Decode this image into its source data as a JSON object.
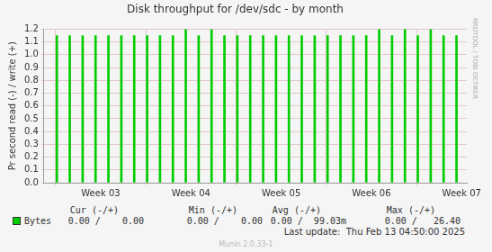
{
  "chart_data": {
    "type": "bar",
    "title": "Disk throughput for /dev/sdc - by month",
    "ylabel": "Pr second read (-) / write (+)",
    "x": [
      1,
      2,
      3,
      4,
      5,
      6,
      7,
      8,
      9,
      10,
      11,
      12,
      13,
      14,
      15,
      16,
      17,
      18,
      19,
      20,
      21,
      22,
      23,
      24,
      25,
      26,
      27,
      28,
      29,
      30,
      31,
      32
    ],
    "series": [
      {
        "name": "Bytes",
        "color": "#00cc00",
        "values": [
          1.15,
          1.15,
          1.15,
          1.15,
          1.15,
          1.15,
          1.15,
          1.15,
          1.15,
          1.15,
          1.2,
          1.15,
          1.2,
          1.15,
          1.15,
          1.15,
          1.15,
          1.15,
          1.15,
          1.15,
          1.15,
          1.15,
          1.15,
          1.15,
          1.15,
          1.2,
          1.15,
          1.2,
          1.15,
          1.2,
          1.15,
          1.15
        ]
      }
    ],
    "xlim": [
      0,
      32.8
    ],
    "xticks": [
      {
        "value": 4.4,
        "label": "Week 03"
      },
      {
        "value": 11.4,
        "label": "Week 04"
      },
      {
        "value": 18.4,
        "label": "Week 05"
      },
      {
        "value": 25.4,
        "label": "Week 06"
      },
      {
        "value": 32.4,
        "label": "Week 07"
      }
    ],
    "ylim": [
      0,
      1.2
    ],
    "yticks": [
      {
        "value": 0,
        "label": "0.0"
      },
      0.1,
      0.2,
      0.3,
      0.4,
      0.5,
      0.6,
      0.7,
      0.8,
      0.9,
      {
        "value": 1,
        "label": "1.0"
      },
      1.1,
      1.2
    ],
    "grid": true
  },
  "legend_table": {
    "headers": [
      "Cur (-/+)",
      "Min (-/+)",
      "Avg (-/+)",
      "Max (-/+)"
    ],
    "rows": [
      {
        "name": "Bytes",
        "cells": [
          "0.00 /    0.00",
          "0.00 /    0.00",
          "0.00 /  99.03m",
          "0.00 /   26.40"
        ]
      }
    ]
  },
  "last_update": "Last update:  Thu Feb 13 04:50:00 2025",
  "version": "Munin 2.0.33-1",
  "watermark": "RRDTOOL / TOBI OETIKER"
}
